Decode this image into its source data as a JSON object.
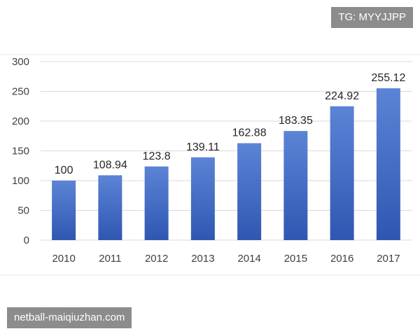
{
  "watermark_top": "TG: MYYJJPP",
  "watermark_bottom": "netball-maiqiuzhan.com",
  "colors": {
    "bar_top": "#5b84d6",
    "bar_bottom": "#2f57b2",
    "grid": "#d9d9d9",
    "frame": "#e6e6e6"
  },
  "chart_data": {
    "type": "bar",
    "title": "",
    "xlabel": "",
    "ylabel": "",
    "categories": [
      "2010",
      "2011",
      "2012",
      "2013",
      "2014",
      "2015",
      "2016",
      "2017"
    ],
    "values": [
      100,
      108.94,
      123.8,
      139.11,
      162.88,
      183.35,
      224.92,
      255.12
    ],
    "value_labels": [
      "100",
      "108.94",
      "123.8",
      "139.11",
      "162.88",
      "183.35",
      "224.92",
      "255.12"
    ],
    "ylim": [
      0,
      300
    ],
    "yticks": [
      "0",
      "50",
      "100",
      "150",
      "200",
      "250",
      "300"
    ],
    "grid": true,
    "legend": "none"
  }
}
